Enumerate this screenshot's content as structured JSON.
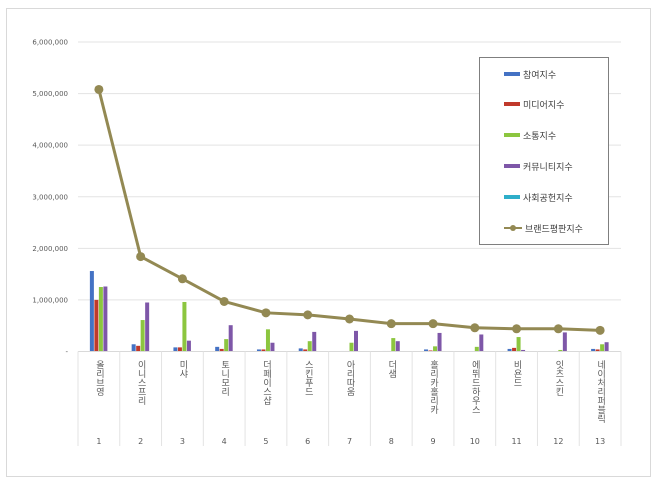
{
  "chart_data": {
    "type": "bar",
    "title": "",
    "xlabel": "",
    "ylabel": "",
    "ylim": [
      0,
      6000000
    ],
    "yticks": [
      "-",
      "1,000,000",
      "2,000,000",
      "3,000,000",
      "4,000,000",
      "5,000,000",
      "6,000,000"
    ],
    "grid": true,
    "legend_position": "upper right (inside)",
    "categories": [
      "올리브영",
      "이니스프리",
      "미샤",
      "토니모리",
      "더페이스샵",
      "스킨푸드",
      "아리따움",
      "더샘",
      "홀리카홀리카",
      "에뛰드하우스",
      "비욘드",
      "잇츠스킨",
      "네이처리퍼블릭"
    ],
    "category_numbers": [
      "1",
      "2",
      "3",
      "4",
      "5",
      "6",
      "7",
      "8",
      "9",
      "10",
      "11",
      "12",
      "13"
    ],
    "series": [
      {
        "name": "참여지수",
        "type": "bar",
        "color": "#4472c4",
        "values": [
          1560000,
          140000,
          80000,
          90000,
          40000,
          60000,
          10000,
          10000,
          40000,
          0,
          50000,
          0,
          50000
        ]
      },
      {
        "name": "미디어지수",
        "type": "bar",
        "color": "#c0392b",
        "values": [
          1000000,
          110000,
          80000,
          50000,
          40000,
          40000,
          10000,
          10000,
          20000,
          0,
          70000,
          0,
          40000
        ]
      },
      {
        "name": "소통지수",
        "type": "bar",
        "color": "#8cc63f",
        "values": [
          1250000,
          610000,
          960000,
          240000,
          430000,
          200000,
          170000,
          260000,
          100000,
          90000,
          280000,
          30000,
          140000
        ]
      },
      {
        "name": "커뮤니티지수",
        "type": "bar",
        "color": "#7e57a8",
        "values": [
          1260000,
          950000,
          210000,
          510000,
          170000,
          380000,
          400000,
          200000,
          360000,
          330000,
          30000,
          370000,
          180000
        ]
      },
      {
        "name": "사회공헌지수",
        "type": "bar",
        "color": "#2eaec9",
        "values": [
          0,
          0,
          0,
          0,
          0,
          0,
          0,
          0,
          0,
          0,
          0,
          0,
          0
        ]
      },
      {
        "name": "브랜드평판지수",
        "type": "line",
        "color": "#938953",
        "values": [
          5080000,
          1840000,
          1410000,
          970000,
          750000,
          710000,
          630000,
          540000,
          540000,
          460000,
          440000,
          440000,
          410000
        ]
      }
    ]
  },
  "legend": {
    "items": [
      {
        "label": "참여지수",
        "color": "#4472c4",
        "kind": "bar"
      },
      {
        "label": "미디어지수",
        "color": "#c0392b",
        "kind": "bar"
      },
      {
        "label": "소통지수",
        "color": "#8cc63f",
        "kind": "bar"
      },
      {
        "label": "커뮤니티지수",
        "color": "#7e57a8",
        "kind": "bar"
      },
      {
        "label": "사회공헌지수",
        "color": "#2eaec9",
        "kind": "bar"
      },
      {
        "label": "브랜드평판지수",
        "color": "#938953",
        "kind": "line"
      }
    ]
  }
}
